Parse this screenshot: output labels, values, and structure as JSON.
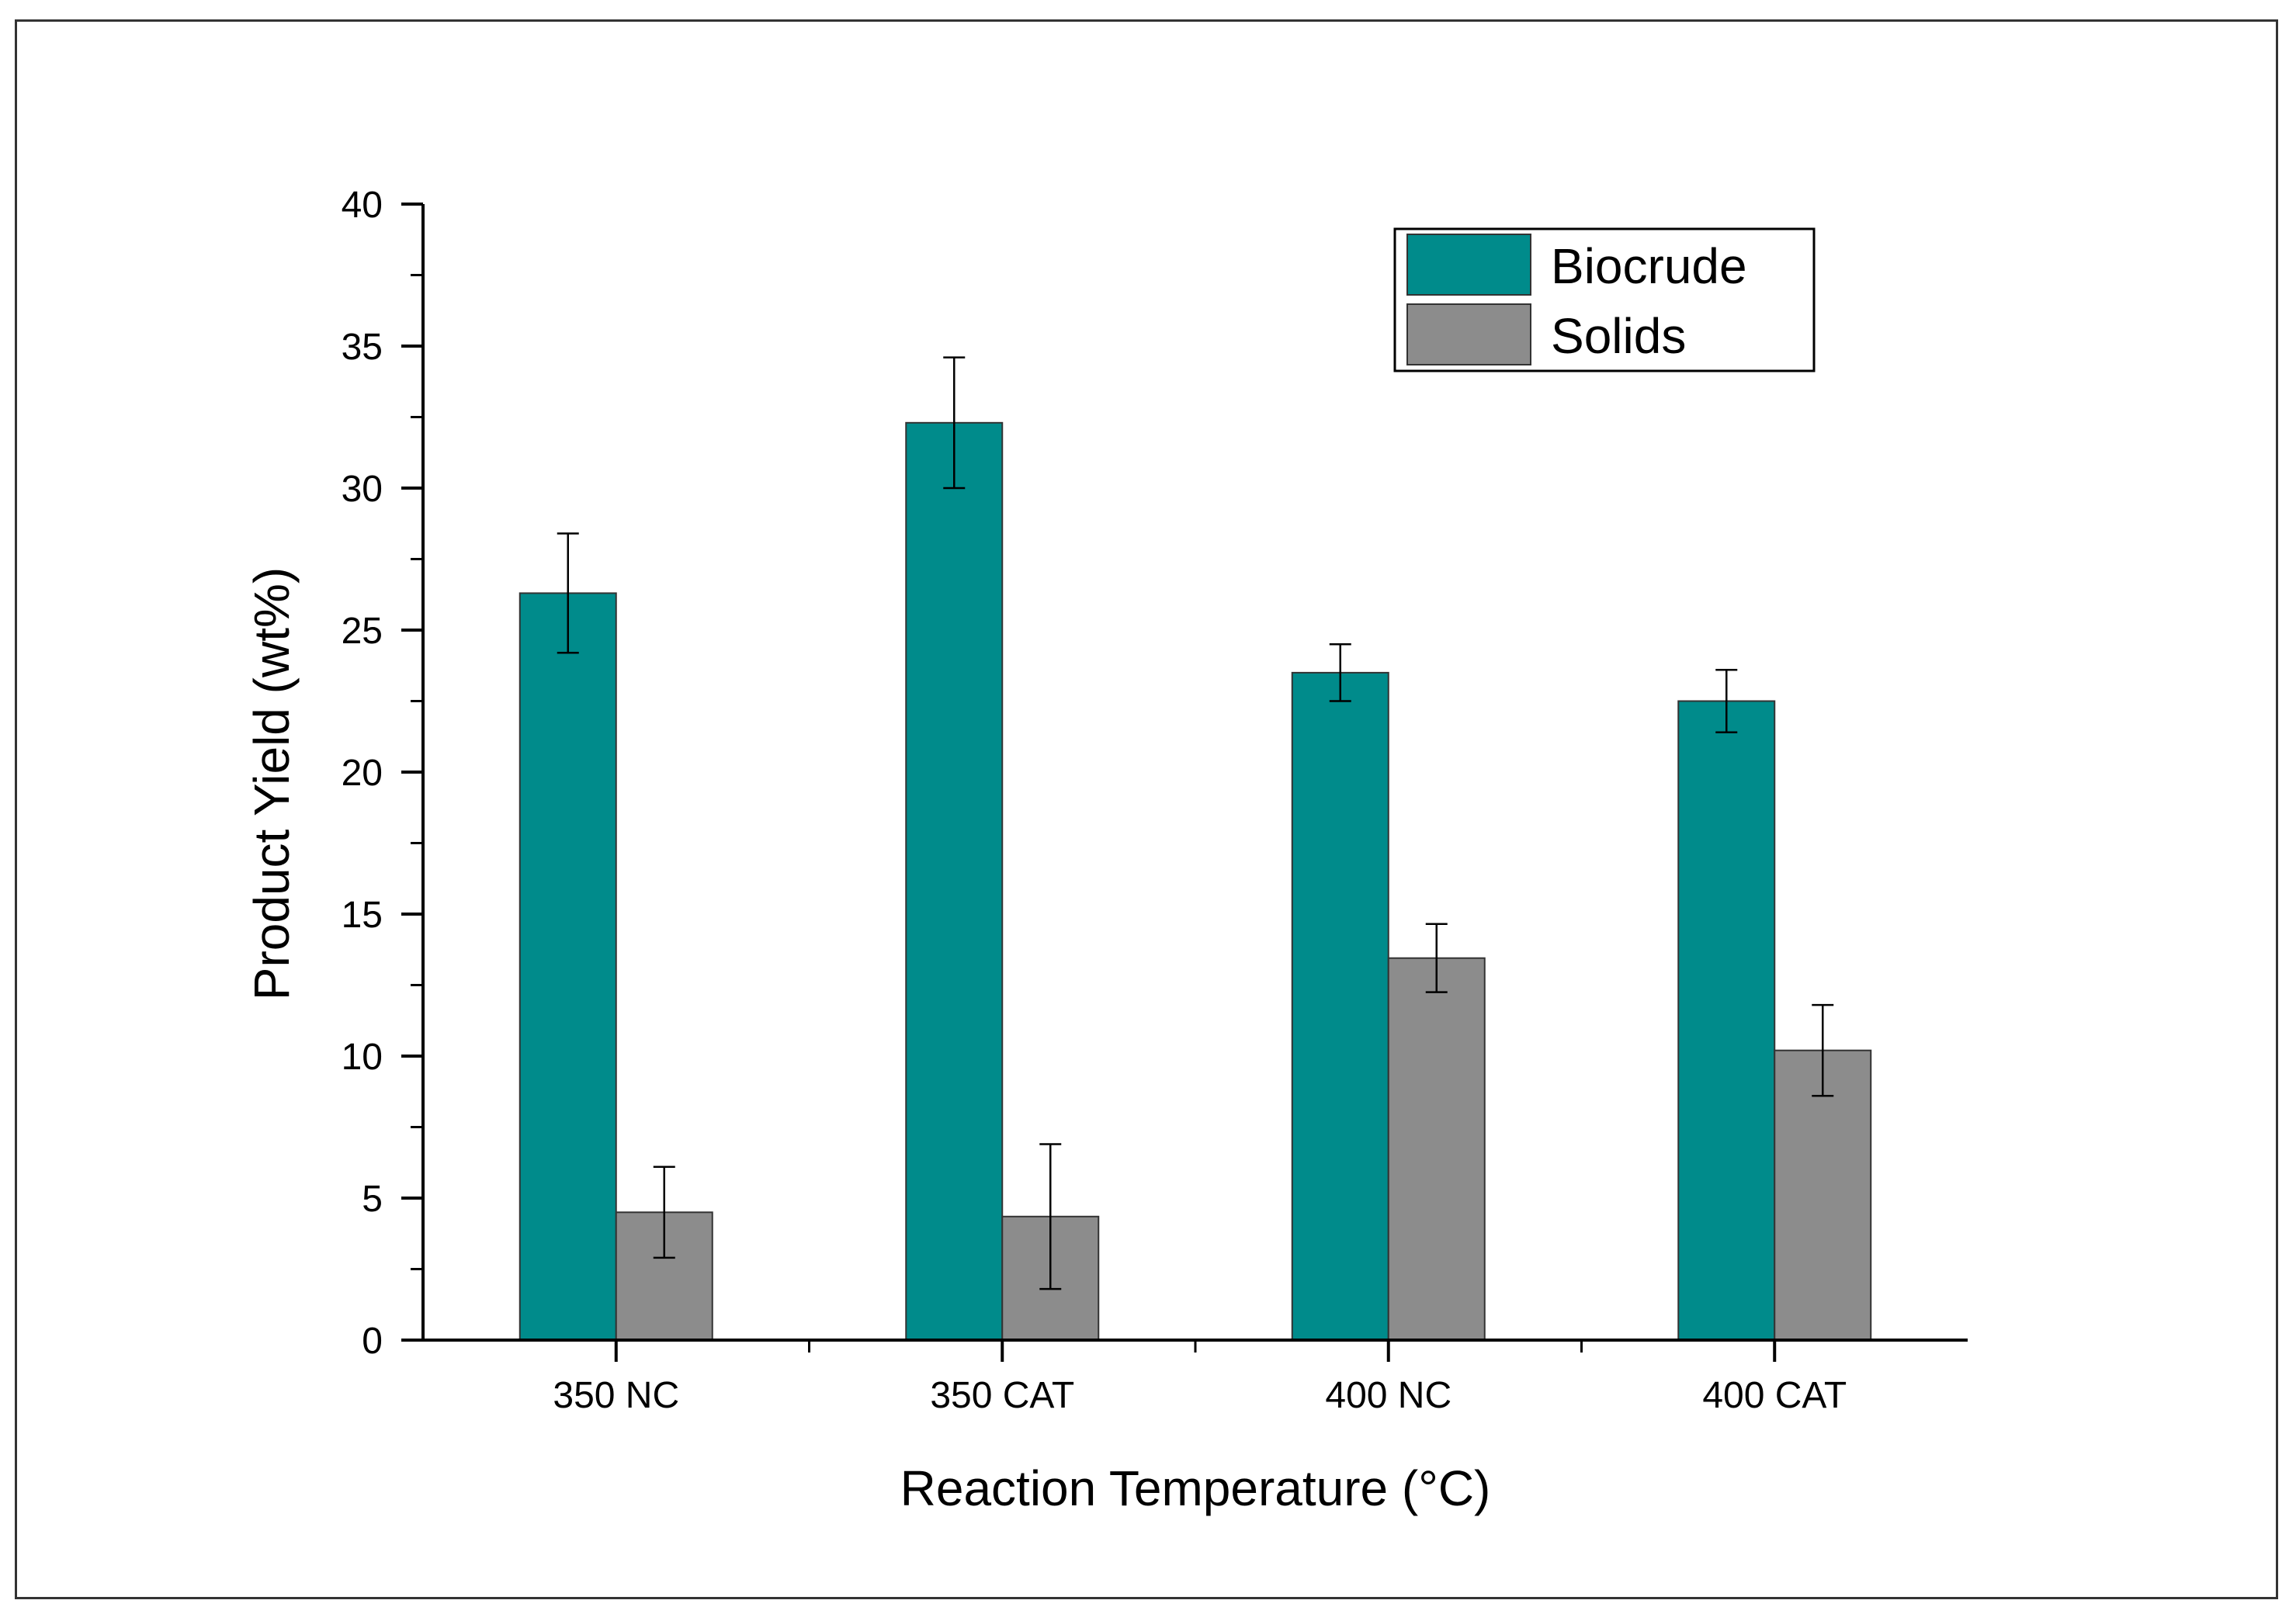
{
  "chart_data": {
    "type": "bar",
    "title": "",
    "xlabel": "Reaction Temperature (°C)",
    "ylabel": "Product Yield (wt%)",
    "ylim": [
      0,
      40
    ],
    "yticks": [
      0,
      5,
      10,
      15,
      20,
      25,
      30,
      35,
      40
    ],
    "yticks_minor_step": 2.5,
    "grid": false,
    "legend_position": "top-right",
    "categories": [
      "350 NC",
      "350 CAT",
      "400 NC",
      "400 CAT"
    ],
    "series": [
      {
        "name": "Biocrude",
        "color": "#008b8b",
        "values": [
          26.3,
          32.3,
          23.5,
          22.5
        ],
        "errors": [
          2.1,
          2.3,
          1.0,
          1.1
        ]
      },
      {
        "name": "Solids",
        "color": "#8c8c8c",
        "values": [
          4.5,
          4.35,
          13.45,
          10.2
        ],
        "errors": [
          1.6,
          2.55,
          1.2,
          1.6
        ]
      }
    ]
  }
}
